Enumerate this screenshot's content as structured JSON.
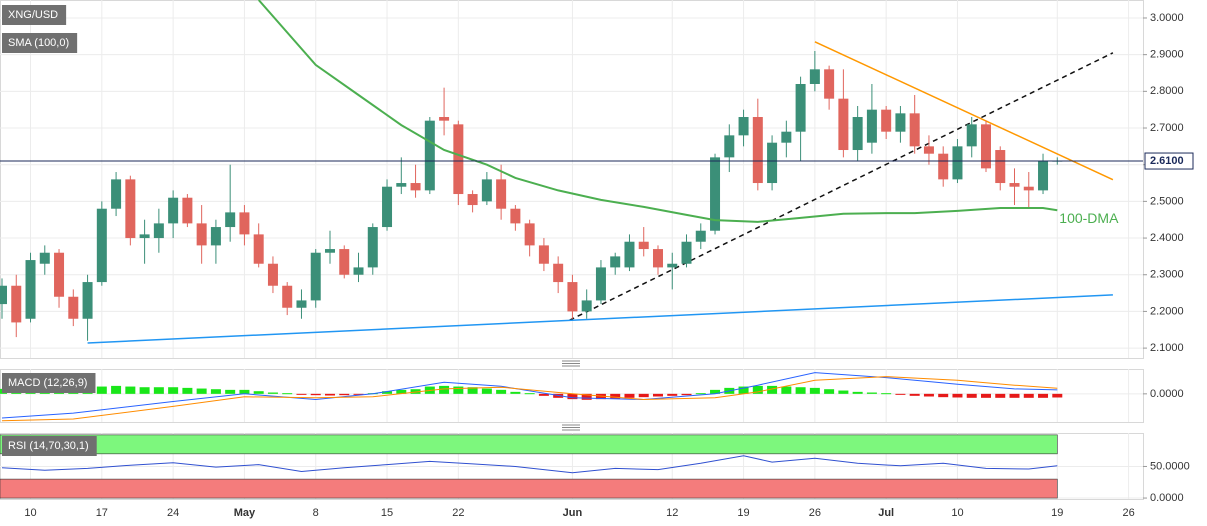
{
  "chart_data": [
    {
      "type": "candlestick",
      "name": "XNG/USD",
      "up_color": "#3b8f78",
      "down_color": "#e0655d",
      "x": [
        0,
        1,
        2,
        3,
        4,
        5,
        6,
        7,
        8,
        9,
        10,
        11,
        12,
        13,
        14,
        15,
        16,
        17,
        18,
        19,
        20,
        21,
        22,
        23,
        24,
        25,
        26,
        27,
        28,
        29,
        30,
        31,
        32,
        33,
        34,
        35,
        36,
        37,
        38,
        39,
        40,
        41,
        42,
        43,
        44,
        45,
        46,
        47,
        48,
        49,
        50,
        51,
        52,
        53,
        54,
        55,
        56,
        57,
        58,
        59,
        60,
        61,
        62,
        63,
        64,
        65,
        66,
        67,
        68,
        69,
        70,
        71,
        72,
        73,
        74
      ],
      "open": [
        2.22,
        2.27,
        2.18,
        2.33,
        2.36,
        2.24,
        2.18,
        2.28,
        2.48,
        2.56,
        2.4,
        2.4,
        2.44,
        2.51,
        2.44,
        2.38,
        2.43,
        2.47,
        2.41,
        2.33,
        2.27,
        2.21,
        2.23,
        2.36,
        2.37,
        2.3,
        2.32,
        2.43,
        2.54,
        2.55,
        2.53,
        2.73,
        2.71,
        2.52,
        2.5,
        2.56,
        2.48,
        2.44,
        2.38,
        2.33,
        2.28,
        2.2,
        2.23,
        2.32,
        2.32,
        2.39,
        2.37,
        2.32,
        2.33,
        2.39,
        2.42,
        2.62,
        2.68,
        2.73,
        2.55,
        2.66,
        2.69,
        2.82,
        2.86,
        2.78,
        2.64,
        2.66,
        2.75,
        2.69,
        2.74,
        2.65,
        2.63,
        2.56,
        2.65,
        2.71,
        2.64,
        2.55,
        2.54,
        2.53,
        2.61
      ],
      "high": [
        2.29,
        2.3,
        2.36,
        2.38,
        2.37,
        2.26,
        2.3,
        2.5,
        2.58,
        2.57,
        2.45,
        2.48,
        2.53,
        2.52,
        2.49,
        2.45,
        2.6,
        2.49,
        2.44,
        2.35,
        2.28,
        2.26,
        2.37,
        2.42,
        2.38,
        2.36,
        2.44,
        2.56,
        2.62,
        2.6,
        2.73,
        2.81,
        2.72,
        2.53,
        2.58,
        2.6,
        2.49,
        2.45,
        2.4,
        2.35,
        2.3,
        2.26,
        2.34,
        2.36,
        2.41,
        2.43,
        2.38,
        2.36,
        2.41,
        2.44,
        2.63,
        2.71,
        2.75,
        2.78,
        2.68,
        2.72,
        2.84,
        2.91,
        2.87,
        2.86,
        2.76,
        2.82,
        2.76,
        2.76,
        2.79,
        2.68,
        2.65,
        2.67,
        2.73,
        2.72,
        2.65,
        2.59,
        2.58,
        2.63,
        2.62
      ],
      "low": [
        2.18,
        2.13,
        2.17,
        2.3,
        2.21,
        2.16,
        2.12,
        2.27,
        2.46,
        2.38,
        2.33,
        2.36,
        2.4,
        2.43,
        2.33,
        2.33,
        2.39,
        2.38,
        2.32,
        2.25,
        2.19,
        2.18,
        2.21,
        2.33,
        2.29,
        2.28,
        2.3,
        2.42,
        2.52,
        2.51,
        2.52,
        2.68,
        2.49,
        2.47,
        2.49,
        2.45,
        2.42,
        2.35,
        2.31,
        2.25,
        2.18,
        2.18,
        2.22,
        2.3,
        2.31,
        2.35,
        2.3,
        2.26,
        2.32,
        2.37,
        2.41,
        2.58,
        2.65,
        2.53,
        2.53,
        2.62,
        2.61,
        2.8,
        2.75,
        2.62,
        2.61,
        2.63,
        2.67,
        2.66,
        2.63,
        2.6,
        2.54,
        2.55,
        2.62,
        2.58,
        2.53,
        2.49,
        2.48,
        2.52,
        2.6
      ],
      "close": [
        2.27,
        2.17,
        2.34,
        2.36,
        2.24,
        2.18,
        2.28,
        2.48,
        2.56,
        2.4,
        2.41,
        2.44,
        2.51,
        2.44,
        2.38,
        2.43,
        2.47,
        2.41,
        2.33,
        2.27,
        2.21,
        2.23,
        2.36,
        2.37,
        2.3,
        2.32,
        2.43,
        2.54,
        2.55,
        2.53,
        2.72,
        2.72,
        2.52,
        2.49,
        2.56,
        2.48,
        2.44,
        2.38,
        2.33,
        2.28,
        2.2,
        2.23,
        2.32,
        2.35,
        2.39,
        2.37,
        2.32,
        2.33,
        2.39,
        2.42,
        2.62,
        2.68,
        2.73,
        2.55,
        2.66,
        2.69,
        2.82,
        2.86,
        2.78,
        2.64,
        2.73,
        2.75,
        2.69,
        2.74,
        2.65,
        2.63,
        2.56,
        2.65,
        2.71,
        2.59,
        2.55,
        2.54,
        2.53,
        2.61,
        2.611
      ],
      "overlays": [
        {
          "name": "SMA (100,0)",
          "color": "#4caf50",
          "x": [
            18,
            22,
            25,
            28,
            31,
            34,
            36,
            39,
            42,
            45,
            48,
            50,
            53,
            56,
            59,
            62,
            64,
            67,
            70,
            73,
            74
          ],
          "values": [
            3.049,
            2.872,
            2.79,
            2.708,
            2.64,
            2.6,
            2.564,
            2.53,
            2.504,
            2.485,
            2.463,
            2.449,
            2.444,
            2.455,
            2.466,
            2.468,
            2.468,
            2.474,
            2.482,
            2.482,
            2.476
          ]
        }
      ],
      "annotation": {
        "text": "100-DMA",
        "color": "#4caf50"
      },
      "trendlines": [
        {
          "color": "#ff9800",
          "dashed": false,
          "x": [
            57,
            77.9
          ],
          "values": [
            2.935,
            2.559
          ]
        },
        {
          "color": "#111111",
          "dashed": true,
          "x": [
            39.8,
            77.9
          ],
          "values": [
            2.176,
            2.905
          ]
        },
        {
          "color": "#2196f3",
          "dashed": false,
          "x": [
            6,
            77.9
          ],
          "values": [
            2.114,
            2.245
          ]
        }
      ],
      "last_price": {
        "value": 2.61,
        "label": "2.6100",
        "color": "#1b2a5a"
      },
      "xlim": [
        -0.14,
        80.01
      ],
      "ylim": [
        2.073,
        3.049
      ],
      "yticks": [
        {
          "value": 3.0,
          "label": "3.0000"
        },
        {
          "value": 2.9,
          "label": "2.9000"
        },
        {
          "value": 2.8,
          "label": "2.8000"
        },
        {
          "value": 2.7,
          "label": "2.7000"
        },
        {
          "value": 2.6,
          "label": "2.6000"
        },
        {
          "value": 2.5,
          "label": "2.5000"
        },
        {
          "value": 2.4,
          "label": "2.4000"
        },
        {
          "value": 2.3,
          "label": "2.3000"
        },
        {
          "value": 2.2,
          "label": "2.2000"
        },
        {
          "value": 2.1,
          "label": "2.1000"
        }
      ],
      "xticks": [
        {
          "value": 2,
          "label": "10"
        },
        {
          "value": 7,
          "label": "17"
        },
        {
          "value": 12,
          "label": "24"
        },
        {
          "value": 17,
          "label": "May"
        },
        {
          "value": 22,
          "label": "8"
        },
        {
          "value": 27,
          "label": "15"
        },
        {
          "value": 32,
          "label": "22"
        },
        {
          "value": 40,
          "label": "Jun"
        },
        {
          "value": 47,
          "label": "12"
        },
        {
          "value": 52,
          "label": "19"
        },
        {
          "value": 57,
          "label": "26"
        },
        {
          "value": 62,
          "label": "Jul"
        },
        {
          "value": 67,
          "label": "10"
        },
        {
          "value": 74,
          "label": "19"
        },
        {
          "value": 79,
          "label": "26"
        }
      ],
      "grid": true
    },
    {
      "type": "macd",
      "name": "MACD (12,26,9)",
      "histogram": {
        "up_color": "#19e619",
        "down_color": "#e61919",
        "values": [
          0.015,
          0.018,
          0.02,
          0.02,
          0.018,
          0.018,
          0.02,
          0.022,
          0.024,
          0.022,
          0.02,
          0.02,
          0.02,
          0.018,
          0.016,
          0.014,
          0.012,
          0.012,
          0.008,
          0.004,
          0.002,
          -0.002,
          -0.004,
          -0.005,
          -0.004,
          -0.003,
          0.002,
          0.008,
          0.012,
          0.014,
          0.022,
          0.024,
          0.022,
          0.02,
          0.016,
          0.012,
          0.006,
          0.002,
          -0.006,
          -0.012,
          -0.016,
          -0.018,
          -0.016,
          -0.014,
          -0.012,
          -0.01,
          -0.008,
          -0.006,
          -0.004,
          0.002,
          0.012,
          0.018,
          0.022,
          0.024,
          0.024,
          0.022,
          0.02,
          0.018,
          0.014,
          0.01,
          0.006,
          0.004,
          0.002,
          -0.002,
          -0.006,
          -0.008,
          -0.01,
          -0.011,
          -0.012,
          -0.012,
          -0.012,
          -0.012,
          -0.012,
          -0.012,
          -0.011
        ]
      },
      "series": [
        {
          "color": "#2962ff",
          "x": [
            0,
            5,
            12,
            17,
            22,
            26,
            31,
            35,
            40,
            45,
            50,
            53,
            57,
            62,
            67,
            71,
            74
          ],
          "values": [
            -0.073,
            -0.058,
            -0.023,
            0,
            -0.017,
            0,
            0.035,
            0.023,
            -0.012,
            -0.017,
            0,
            0.026,
            0.064,
            0.049,
            0.029,
            0.015,
            0.012
          ]
        },
        {
          "color": "#ff8c00",
          "x": [
            0,
            5,
            12,
            17,
            22,
            26,
            31,
            35,
            40,
            45,
            50,
            53,
            57,
            62,
            67,
            71,
            74
          ],
          "values": [
            -0.081,
            -0.076,
            -0.038,
            -0.009,
            -0.012,
            -0.009,
            0.015,
            0.02,
            0,
            -0.017,
            -0.012,
            0.006,
            0.041,
            0.052,
            0.041,
            0.026,
            0.017
          ]
        }
      ],
      "ylim": [
        -0.085,
        0.075
      ],
      "yticks": [
        {
          "value": 0,
          "label": "0.0000"
        }
      ]
    },
    {
      "type": "rsi",
      "name": "RSI (14,70,30,1)",
      "bands": [
        {
          "range": [
            70,
            100
          ],
          "color": "#7df77d"
        },
        {
          "range": [
            0,
            30
          ],
          "color": "#f47c7c"
        }
      ],
      "series": [
        {
          "color": "#3050d0",
          "x": [
            0,
            3,
            6,
            9,
            12,
            15,
            18,
            21,
            24,
            27,
            30,
            33,
            36,
            40,
            43,
            46,
            49,
            52,
            54,
            57,
            60,
            63,
            66,
            69,
            72,
            74
          ],
          "values": [
            48,
            44,
            47,
            52,
            56,
            49,
            53,
            42,
            48,
            53,
            58,
            54,
            50,
            40,
            47,
            45,
            55,
            67,
            57,
            63,
            55,
            51,
            55,
            47,
            46,
            51
          ]
        }
      ],
      "ylim": [
        -1.5,
        103
      ],
      "yticks": [
        {
          "value": 50,
          "label": "50.0000"
        },
        {
          "value": 0,
          "label": "0.0000"
        }
      ]
    }
  ]
}
